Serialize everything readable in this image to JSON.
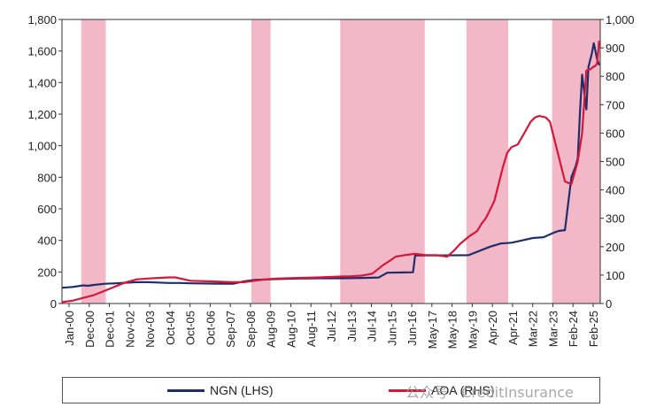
{
  "chart_data": {
    "type": "line",
    "x_tick_labels": [
      "Jan-00",
      "Dec-00",
      "Dec-01",
      "Nov-02",
      "Nov-03",
      "Oct-04",
      "Oct-05",
      "Oct-06",
      "Sep-07",
      "Sep-08",
      "Aug-09",
      "Aug-10",
      "Aug-11",
      "Jul-12",
      "Jul-13",
      "Jul-14",
      "Jun-15",
      "Jun-16",
      "May-17",
      "May-18",
      "May-19",
      "Apr-20",
      "Apr-21",
      "Mar-22",
      "Mar-23",
      "Feb-24",
      "Feb-25"
    ],
    "x_range": [
      2000.0,
      2025.15
    ],
    "left_axis": {
      "ylim": [
        0,
        1800
      ],
      "ticks": [
        "0",
        "200",
        "400",
        "600",
        "800",
        "1,000",
        "1,200",
        "1,400",
        "1,600",
        "1,800"
      ]
    },
    "right_axis": {
      "ylim": [
        0,
        1000
      ],
      "ticks": [
        "0",
        "100",
        "200",
        "300",
        "400",
        "500",
        "600",
        "700",
        "800",
        "900",
        "1,000"
      ]
    },
    "shaded_periods": [
      [
        2000.9,
        2002.05
      ],
      [
        2008.85,
        2009.75
      ],
      [
        2013.0,
        2016.95
      ],
      [
        2018.9,
        2020.85
      ],
      [
        2022.9,
        2025.15
      ]
    ],
    "shade_color": "#f2b8c8",
    "series": [
      {
        "name": "NGN  (LHS)",
        "axis": "left",
        "color": "#1f2d6b",
        "x": [
          2000.0,
          2000.5,
          2001.0,
          2001.2,
          2001.5,
          2002.0,
          2002.5,
          2003.0,
          2003.5,
          2004.0,
          2004.5,
          2005.0,
          2005.5,
          2006.0,
          2007.0,
          2008.0,
          2008.5,
          2009.0,
          2009.5,
          2010.0,
          2011.0,
          2012.0,
          2013.0,
          2014.0,
          2014.8,
          2015.2,
          2016.0,
          2016.4,
          2016.5,
          2017.0,
          2018.0,
          2019.0,
          2020.0,
          2020.5,
          2021.0,
          2021.5,
          2022.0,
          2022.5,
          2023.0,
          2023.2,
          2023.5,
          2023.8,
          2024.0,
          2024.1,
          2024.2,
          2024.3,
          2024.5,
          2024.6,
          2024.75,
          2024.85,
          2025.0,
          2025.1
        ],
        "y": [
          100,
          105,
          115,
          112,
          118,
          125,
          128,
          132,
          135,
          135,
          133,
          130,
          130,
          128,
          126,
          125,
          140,
          150,
          152,
          155,
          158,
          160,
          160,
          162,
          165,
          195,
          197,
          198,
          305,
          305,
          305,
          306,
          360,
          380,
          385,
          400,
          415,
          420,
          450,
          460,
          465,
          800,
          870,
          920,
          1200,
          1450,
          1230,
          1500,
          1580,
          1650,
          1550,
          1510
        ]
      },
      {
        "name": "AOA (RHS)",
        "axis": "right",
        "color": "#d51839",
        "x": [
          2000.0,
          2000.5,
          2001.0,
          2001.5,
          2002.0,
          2002.5,
          2003.0,
          2003.5,
          2004.0,
          2004.5,
          2005.0,
          2005.3,
          2006.0,
          2007.0,
          2008.0,
          2008.5,
          2009.0,
          2009.5,
          2010.0,
          2011.0,
          2012.0,
          2013.0,
          2013.5,
          2014.0,
          2014.5,
          2015.0,
          2015.3,
          2015.6,
          2016.0,
          2016.5,
          2017.0,
          2017.5,
          2018.0,
          2018.3,
          2018.6,
          2019.0,
          2019.4,
          2019.6,
          2019.8,
          2020.0,
          2020.2,
          2020.4,
          2020.6,
          2020.8,
          2021.0,
          2021.3,
          2021.6,
          2021.9,
          2022.1,
          2022.3,
          2022.6,
          2022.8,
          2023.0,
          2023.2,
          2023.5,
          2023.8,
          2024.1,
          2024.3,
          2024.5,
          2024.7,
          2024.85,
          2024.9,
          2025.0,
          2025.1
        ],
        "y": [
          5,
          10,
          20,
          30,
          45,
          60,
          75,
          85,
          88,
          90,
          92,
          92,
          80,
          78,
          75,
          75,
          80,
          85,
          88,
          90,
          92,
          95,
          96,
          98,
          105,
          135,
          150,
          165,
          170,
          175,
          170,
          170,
          165,
          185,
          210,
          235,
          255,
          280,
          300,
          330,
          360,
          420,
          480,
          530,
          550,
          560,
          600,
          640,
          655,
          660,
          655,
          640,
          580,
          520,
          430,
          420,
          500,
          600,
          820,
          825,
          835,
          835,
          845,
          925
        ]
      }
    ],
    "legend": [
      "NGN  (LHS)",
      "AOA (RHS)"
    ],
    "watermark": "公众号 · CreditInsurance",
    "legend_placement": "bottom"
  }
}
